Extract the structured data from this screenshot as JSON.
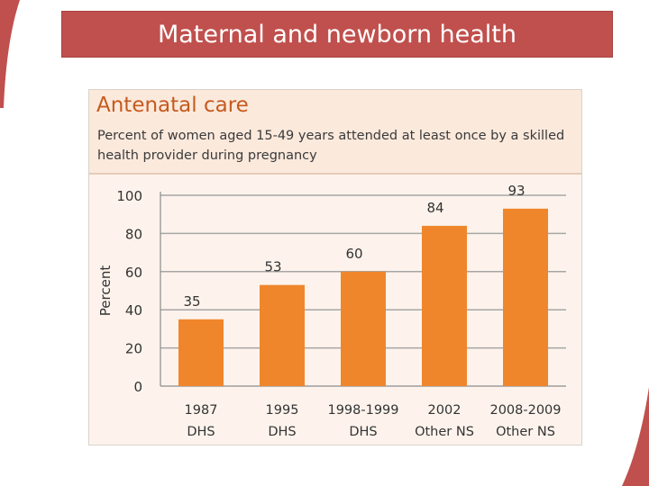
{
  "slide": {
    "title": "Maternal and newborn health",
    "colors": {
      "title_bar": "#c0504d",
      "bar": "#f0862c",
      "panel_title": "#c55a1e"
    }
  },
  "chart_data": {
    "type": "bar",
    "title": "Antenatal care",
    "subtitle": "Percent of women aged 15-49 years attended at least once by a skilled health provider during pregnancy",
    "ylabel": "Percent",
    "xlabel": "",
    "ylim": [
      0,
      100
    ],
    "yticks": [
      0,
      20,
      40,
      60,
      80,
      100
    ],
    "grid": true,
    "categories": [
      [
        "1987",
        "DHS"
      ],
      [
        "1995",
        "DHS"
      ],
      [
        "1998-1999",
        "DHS"
      ],
      [
        "2002",
        "Other NS"
      ],
      [
        "2008-2009",
        "Other NS"
      ]
    ],
    "values": [
      35,
      53,
      60,
      84,
      93
    ],
    "data_labels": [
      "35",
      "53",
      "60",
      "84",
      "93"
    ]
  }
}
